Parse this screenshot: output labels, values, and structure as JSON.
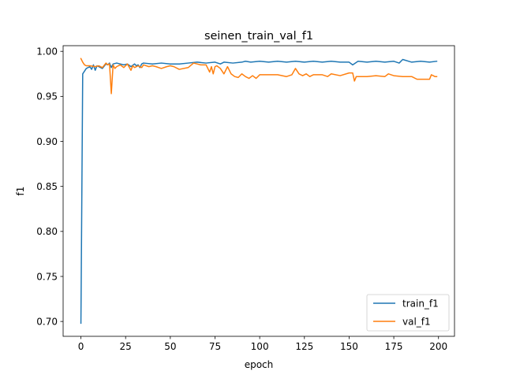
{
  "chart_data": {
    "type": "line",
    "title": "seinen_train_val_f1",
    "xlabel": "epoch",
    "ylabel": "f1",
    "xlim": [
      -9.95,
      208.95
    ],
    "ylim": [
      0.6835,
      1.0063
    ],
    "x_ticks": [
      0,
      25,
      50,
      75,
      100,
      125,
      150,
      175,
      200
    ],
    "y_ticks": [
      0.7,
      0.75,
      0.8,
      0.85,
      0.9,
      0.95,
      1.0
    ],
    "grid": false,
    "legend_position": "lower-right",
    "series": [
      {
        "name": "train_f1",
        "color": "#1f77b4",
        "x": [
          0,
          1,
          3,
          5,
          6,
          7,
          8,
          9,
          10,
          12,
          14,
          15,
          16,
          17,
          18,
          20,
          24,
          26,
          28,
          30,
          31,
          32,
          33,
          34,
          35,
          40,
          45,
          50,
          55,
          60,
          65,
          70,
          75,
          78,
          80,
          85,
          90,
          92,
          95,
          100,
          105,
          110,
          115,
          120,
          125,
          130,
          135,
          140,
          145,
          150,
          152,
          155,
          160,
          165,
          170,
          175,
          178,
          180,
          185,
          190,
          195,
          199
        ],
        "y": [
          0.698,
          0.975,
          0.981,
          0.983,
          0.98,
          0.985,
          0.979,
          0.984,
          0.983,
          0.981,
          0.986,
          0.985,
          0.987,
          0.982,
          0.986,
          0.987,
          0.985,
          0.986,
          0.983,
          0.986,
          0.984,
          0.985,
          0.982,
          0.986,
          0.987,
          0.986,
          0.987,
          0.986,
          0.986,
          0.987,
          0.988,
          0.987,
          0.988,
          0.986,
          0.988,
          0.987,
          0.988,
          0.989,
          0.988,
          0.989,
          0.988,
          0.989,
          0.988,
          0.989,
          0.988,
          0.989,
          0.988,
          0.989,
          0.988,
          0.988,
          0.985,
          0.989,
          0.988,
          0.989,
          0.988,
          0.989,
          0.987,
          0.991,
          0.988,
          0.989,
          0.988,
          0.989
        ]
      },
      {
        "name": "val_f1",
        "color": "#ff7f0e",
        "x": [
          0,
          1,
          2,
          3,
          5,
          8,
          10,
          12,
          14,
          15,
          16,
          17,
          18,
          19,
          20,
          22,
          24,
          26,
          28,
          29,
          30,
          32,
          34,
          35,
          38,
          40,
          42,
          45,
          48,
          50,
          52,
          55,
          60,
          63,
          65,
          67,
          70,
          72,
          73,
          74,
          75,
          76,
          78,
          80,
          82,
          84,
          86,
          88,
          90,
          92,
          94,
          96,
          98,
          100,
          105,
          110,
          115,
          118,
          120,
          122,
          124,
          126,
          128,
          130,
          135,
          138,
          140,
          145,
          150,
          152,
          153,
          154,
          155,
          160,
          165,
          170,
          172,
          175,
          180,
          185,
          188,
          190,
          195,
          196,
          198,
          199
        ],
        "y": [
          0.992,
          0.988,
          0.985,
          0.984,
          0.984,
          0.983,
          0.984,
          0.982,
          0.987,
          0.985,
          0.986,
          0.953,
          0.985,
          0.981,
          0.983,
          0.985,
          0.982,
          0.986,
          0.979,
          0.984,
          0.982,
          0.984,
          0.982,
          0.985,
          0.983,
          0.984,
          0.983,
          0.981,
          0.983,
          0.984,
          0.983,
          0.98,
          0.982,
          0.987,
          0.986,
          0.985,
          0.985,
          0.977,
          0.983,
          0.975,
          0.983,
          0.984,
          0.981,
          0.975,
          0.983,
          0.975,
          0.972,
          0.971,
          0.975,
          0.972,
          0.97,
          0.973,
          0.97,
          0.974,
          0.974,
          0.974,
          0.972,
          0.974,
          0.981,
          0.975,
          0.973,
          0.975,
          0.972,
          0.974,
          0.974,
          0.972,
          0.975,
          0.973,
          0.976,
          0.976,
          0.967,
          0.972,
          0.972,
          0.972,
          0.973,
          0.972,
          0.975,
          0.973,
          0.972,
          0.972,
          0.969,
          0.969,
          0.969,
          0.974,
          0.972,
          0.972
        ]
      }
    ]
  }
}
